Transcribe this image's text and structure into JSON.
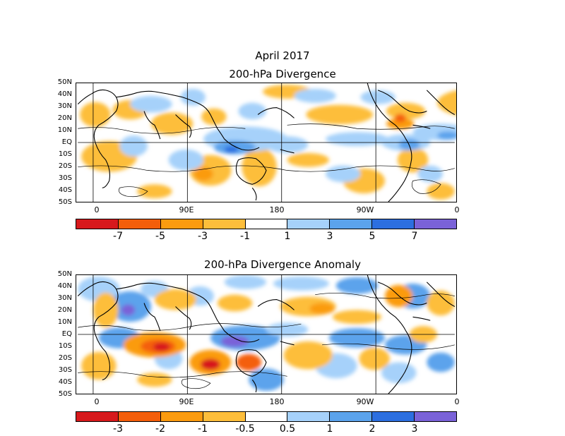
{
  "header": {
    "month": "April 2017"
  },
  "panels": [
    {
      "title": "200-hPa Divergence",
      "lat_labels": [
        "50N",
        "40N",
        "30N",
        "20N",
        "10N",
        "EQ",
        "10S",
        "20S",
        "30S",
        "40S",
        "50S"
      ],
      "lon_labels": [
        "0",
        "90E",
        "180",
        "90W",
        "0"
      ],
      "colorbar": {
        "colors": [
          "#d7191c",
          "#f45e0a",
          "#fb9b0f",
          "#fdbe3b",
          "#ffffff",
          "#a6d1fa",
          "#5ba3ec",
          "#2c6fe0",
          "#7a62d8"
        ],
        "labels": [
          "-7",
          "-5",
          "-3",
          "-1",
          "1",
          "3",
          "5",
          "7"
        ]
      }
    },
    {
      "title": "200-hPa Divergence Anomaly",
      "lat_labels": [
        "50N",
        "40N",
        "30N",
        "20N",
        "10N",
        "EQ",
        "10S",
        "20S",
        "30S",
        "40S",
        "50S"
      ],
      "lon_labels": [
        "0",
        "90E",
        "180",
        "90W",
        "0"
      ],
      "colorbar": {
        "colors": [
          "#d7191c",
          "#f45e0a",
          "#fb9b0f",
          "#fdbe3b",
          "#ffffff",
          "#a6d1fa",
          "#5ba3ec",
          "#2c6fe0",
          "#7a62d8"
        ],
        "labels": [
          "-3",
          "-2",
          "-1",
          "-0.5",
          "0.5",
          "1",
          "2",
          "3"
        ]
      }
    }
  ]
}
